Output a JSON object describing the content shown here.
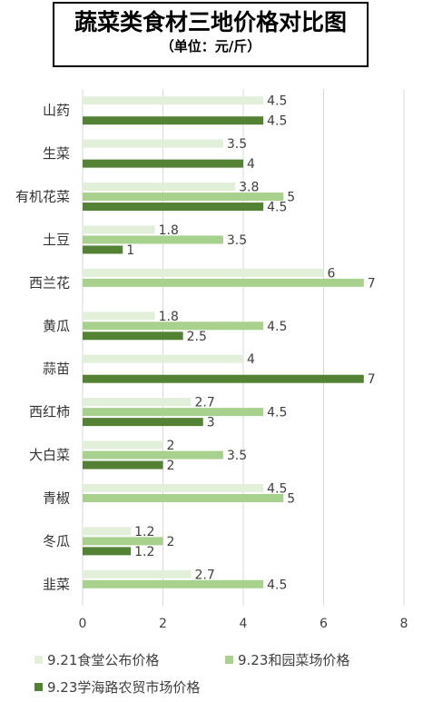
{
  "title": "蔬菜类食材三地价格对比图",
  "subtitle": "（单位：元/斤）",
  "chart_data": {
    "type": "bar",
    "orientation": "horizontal",
    "categories": [
      "山药",
      "生菜",
      "有机花菜",
      "土豆",
      "西兰花",
      "黄瓜",
      "蒜苗",
      "西红柿",
      "大白菜",
      "青椒",
      "冬瓜",
      "韭菜"
    ],
    "series": [
      {
        "name": "9.21食堂公布价格",
        "color": "#e2efd9",
        "values": [
          4.5,
          3.5,
          3.8,
          1.8,
          6,
          1.8,
          4,
          2.7,
          2,
          4.5,
          1.2,
          2.7
        ]
      },
      {
        "name": "9.23和园菜场价格",
        "color": "#a9d18e",
        "values": [
          null,
          null,
          5,
          3.5,
          7,
          4.5,
          null,
          4.5,
          3.5,
          5,
          2,
          4.5
        ]
      },
      {
        "name": "9.23学海路农贸市场价格",
        "color": "#548235",
        "values": [
          4.5,
          4,
          4.5,
          1,
          null,
          2.5,
          7,
          3,
          2,
          null,
          1.2,
          null
        ]
      }
    ],
    "xlim": [
      0,
      8
    ],
    "xticks": [
      "0",
      "2",
      "4",
      "6",
      "8"
    ],
    "grid": "vertical",
    "legend_position": "bottom"
  }
}
